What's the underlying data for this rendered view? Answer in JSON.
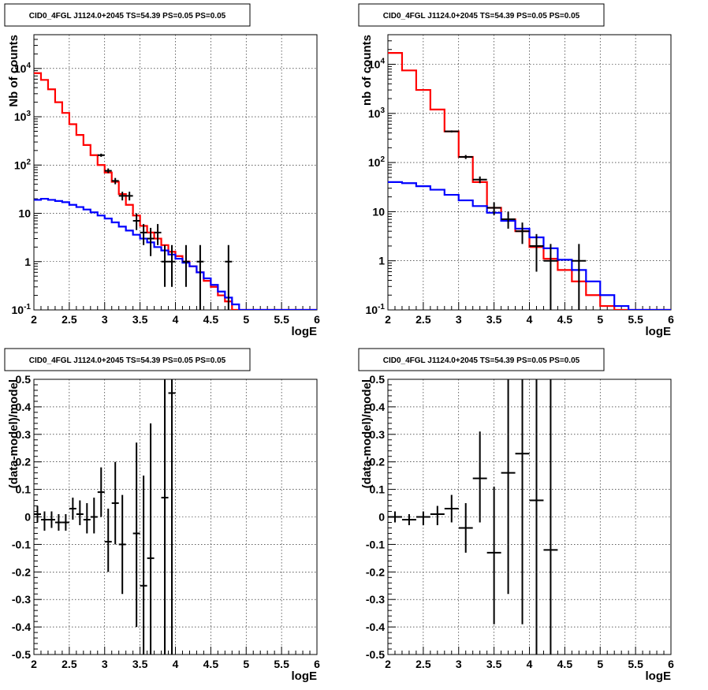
{
  "chart_data": [
    {
      "type": "line",
      "title": "CID0_4FGL J1124.0+2045 TS=54.39 PS=0.05 PS=0.05",
      "xlabel": "logE",
      "ylabel": "Nb of counts",
      "log_y": true,
      "grid": true,
      "xlim": [
        2,
        6
      ],
      "ylim": [
        0.1,
        50000
      ],
      "x_ticks": [
        "2",
        "2.5",
        "3",
        "3.5",
        "4",
        "4.5",
        "5",
        "5.5",
        "6"
      ],
      "y_ticks": [
        {
          "v": 0.1,
          "label": "10^-1"
        },
        {
          "v": 1,
          "label": "1"
        },
        {
          "v": 10,
          "label": "10"
        },
        {
          "v": 100,
          "label": "10^2"
        },
        {
          "v": 1000,
          "label": "10^3"
        },
        {
          "v": 10000,
          "label": "10^4"
        }
      ],
      "bin_edges": [
        2.0,
        2.1,
        2.2,
        2.3,
        2.4,
        2.5,
        2.6,
        2.7,
        2.8,
        2.9,
        3.0,
        3.1,
        3.2,
        3.3,
        3.4,
        3.5,
        3.6,
        3.7,
        3.8,
        3.9,
        4.0,
        4.1,
        4.2,
        4.3,
        4.4,
        4.5,
        4.6,
        4.7,
        4.8,
        4.9,
        5.0,
        5.1,
        5.2,
        5.3,
        5.4,
        5.5,
        5.6,
        5.7,
        5.8,
        5.9,
        6.0
      ],
      "series": [
        {
          "color": "#ff0000",
          "style": "step",
          "values": [
            8000,
            5800,
            3700,
            2000,
            1200,
            700,
            420,
            260,
            160,
            100,
            70,
            45,
            25,
            15,
            9,
            5.5,
            4,
            3,
            2.2,
            1.6,
            1.3,
            1.0,
            0.8,
            0.6,
            0.4,
            0.3,
            0.2,
            0.15,
            0.1,
            0.1,
            0.1,
            0.1,
            0.1,
            0.1,
            0.1,
            0.1,
            0.1,
            0.1,
            0.1,
            0.1
          ]
        },
        {
          "color": "#0000ff",
          "style": "step",
          "values": [
            19,
            20,
            19,
            18,
            17,
            15,
            13.5,
            12,
            10.5,
            9,
            7.8,
            6.5,
            5.3,
            4.4,
            3.6,
            3,
            2.5,
            2,
            1.7,
            1.4,
            1.15,
            0.95,
            0.8,
            0.6,
            0.45,
            0.33,
            0.24,
            0.18,
            0.13,
            0.1,
            0.1,
            0.1,
            0.1,
            0.1,
            0.1,
            0.1,
            0.1,
            0.1,
            0.1,
            0.1
          ]
        },
        {
          "color": "#000000",
          "style": "errorbars",
          "points": [
            {
              "x": 2.95,
              "y": 160,
              "xerr": 0.05,
              "lo": 148,
              "hi": 172
            },
            {
              "x": 3.05,
              "y": 76,
              "xerr": 0.05,
              "lo": 68,
              "hi": 85
            },
            {
              "x": 3.15,
              "y": 47,
              "xerr": 0.05,
              "lo": 40,
              "hi": 54
            },
            {
              "x": 3.25,
              "y": 23,
              "xerr": 0.05,
              "lo": 18.5,
              "hi": 28
            },
            {
              "x": 3.35,
              "y": 23,
              "xerr": 0.05,
              "lo": 18.5,
              "hi": 28
            },
            {
              "x": 3.45,
              "y": 7,
              "xerr": 0.05,
              "lo": 4.5,
              "hi": 10
            },
            {
              "x": 3.55,
              "y": 4,
              "xerr": 0.05,
              "lo": 2.2,
              "hi": 6
            },
            {
              "x": 3.65,
              "y": 3,
              "xerr": 0.05,
              "lo": 1.3,
              "hi": 5
            },
            {
              "x": 3.75,
              "y": 4,
              "xerr": 0.05,
              "lo": 2.2,
              "hi": 6
            },
            {
              "x": 3.85,
              "y": 1,
              "xerr": 0.05,
              "lo": 0.3,
              "hi": 2.2
            },
            {
              "x": 3.95,
              "y": 1,
              "xerr": 0.05,
              "lo": 0.3,
              "hi": 2.2
            },
            {
              "x": 4.15,
              "y": 1,
              "xerr": 0.05,
              "lo": 0.3,
              "hi": 2.2
            },
            {
              "x": 4.35,
              "y": 1,
              "xerr": 0.05,
              "lo": 0.1,
              "hi": 2.2
            },
            {
              "x": 4.75,
              "y": 1,
              "xerr": 0.05,
              "lo": 0.1,
              "hi": 2.2
            }
          ]
        }
      ]
    },
    {
      "type": "line",
      "title": "CID0_4FGL J1124.0+2045 TS=54.39 PS=0.05 PS=0.05",
      "xlabel": "logE",
      "ylabel": "nb of counts",
      "log_y": true,
      "grid": true,
      "xlim": [
        2,
        6
      ],
      "ylim": [
        0.1,
        40000
      ],
      "x_ticks": [
        "2",
        "2.5",
        "3",
        "3.5",
        "4",
        "4.5",
        "5",
        "5.5",
        "6"
      ],
      "y_ticks": [
        {
          "v": 0.1,
          "label": "10^-1"
        },
        {
          "v": 1,
          "label": "1"
        },
        {
          "v": 10,
          "label": "10"
        },
        {
          "v": 100,
          "label": "10^2"
        },
        {
          "v": 1000,
          "label": "10^3"
        },
        {
          "v": 10000,
          "label": "10^4"
        }
      ],
      "bin_edges": [
        2.0,
        2.2,
        2.4,
        2.6,
        2.8,
        3.0,
        3.2,
        3.4,
        3.6,
        3.8,
        4.0,
        4.2,
        4.4,
        4.6,
        4.8,
        5.0,
        5.2,
        5.4,
        5.6,
        5.8,
        6.0
      ],
      "series": [
        {
          "color": "#ff0000",
          "style": "step",
          "values": [
            17000,
            7500,
            3000,
            1200,
            430,
            130,
            40,
            12,
            7,
            4,
            1.9,
            1.1,
            0.65,
            0.38,
            0.2,
            0.12,
            0.1,
            0.1,
            0.1,
            0.1
          ]
        },
        {
          "color": "#0000ff",
          "style": "step",
          "values": [
            40,
            38,
            33,
            28,
            22,
            17,
            13,
            9.5,
            6.5,
            4.5,
            3,
            1.8,
            1.05,
            0.65,
            0.38,
            0.2,
            0.12,
            0.1,
            0.1,
            0.1
          ]
        },
        {
          "color": "#000000",
          "style": "errorbars",
          "points": [
            {
              "x": 2.9,
              "y": 430,
              "xerr": 0.1,
              "lo": 410,
              "hi": 450
            },
            {
              "x": 3.1,
              "y": 130,
              "xerr": 0.1,
              "lo": 118,
              "hi": 142
            },
            {
              "x": 3.3,
              "y": 45,
              "xerr": 0.1,
              "lo": 38,
              "hi": 52
            },
            {
              "x": 3.5,
              "y": 12,
              "xerr": 0.1,
              "lo": 8.5,
              "hi": 15.5
            },
            {
              "x": 3.7,
              "y": 7,
              "xerr": 0.1,
              "lo": 4.5,
              "hi": 10
            },
            {
              "x": 3.9,
              "y": 4,
              "xerr": 0.1,
              "lo": 2.2,
              "hi": 6
            },
            {
              "x": 4.1,
              "y": 2,
              "xerr": 0.1,
              "lo": 0.6,
              "hi": 3.5
            },
            {
              "x": 4.3,
              "y": 1,
              "xerr": 0.1,
              "lo": 0.1,
              "hi": 2.2
            },
            {
              "x": 4.7,
              "y": 1,
              "xerr": 0.1,
              "lo": 0.1,
              "hi": 2.2
            }
          ]
        }
      ]
    },
    {
      "type": "scatter",
      "title": "CID0_4FGL J1124.0+2045 TS=54.39 PS=0.05 PS=0.05",
      "xlabel": "logE",
      "ylabel": "(data-model)/model",
      "log_y": false,
      "grid": true,
      "xlim": [
        2,
        6
      ],
      "ylim": [
        -0.5,
        0.5
      ],
      "x_ticks": [
        "2",
        "2.5",
        "3",
        "3.5",
        "4",
        "4.5",
        "5",
        "5.5",
        "6"
      ],
      "y_ticks": [
        {
          "v": -0.5,
          "label": "-0.5"
        },
        {
          "v": -0.4,
          "label": "-0.4"
        },
        {
          "v": -0.3,
          "label": "-0.3"
        },
        {
          "v": -0.2,
          "label": "-0.2"
        },
        {
          "v": -0.1,
          "label": "-0.1"
        },
        {
          "v": 0,
          "label": "0"
        },
        {
          "v": 0.1,
          "label": "0.1"
        },
        {
          "v": 0.2,
          "label": "0.2"
        },
        {
          "v": 0.3,
          "label": "0.3"
        },
        {
          "v": 0.4,
          "label": "0.4"
        },
        {
          "v": 0.5,
          "label": "0.5"
        }
      ],
      "series": [
        {
          "color": "#000000",
          "style": "errorbars",
          "points": [
            {
              "x": 2.05,
              "y": 0.01,
              "xerr": 0.05,
              "lo": -0.02,
              "hi": 0.04
            },
            {
              "x": 2.15,
              "y": -0.01,
              "xerr": 0.05,
              "lo": -0.05,
              "hi": 0.02
            },
            {
              "x": 2.25,
              "y": -0.01,
              "xerr": 0.05,
              "lo": -0.04,
              "hi": 0.02
            },
            {
              "x": 2.35,
              "y": -0.02,
              "xerr": 0.05,
              "lo": -0.05,
              "hi": 0.01
            },
            {
              "x": 2.45,
              "y": -0.02,
              "xerr": 0.05,
              "lo": -0.05,
              "hi": 0.01
            },
            {
              "x": 2.55,
              "y": 0.03,
              "xerr": 0.05,
              "lo": -0.01,
              "hi": 0.07
            },
            {
              "x": 2.65,
              "y": 0.01,
              "xerr": 0.05,
              "lo": -0.03,
              "hi": 0.06
            },
            {
              "x": 2.75,
              "y": -0.01,
              "xerr": 0.05,
              "lo": -0.06,
              "hi": 0.05
            },
            {
              "x": 2.85,
              "y": 0.0,
              "xerr": 0.05,
              "lo": -0.06,
              "hi": 0.07
            },
            {
              "x": 2.95,
              "y": 0.09,
              "xerr": 0.05,
              "lo": 0.0,
              "hi": 0.18
            },
            {
              "x": 3.05,
              "y": -0.09,
              "xerr": 0.05,
              "lo": -0.2,
              "hi": 0.03
            },
            {
              "x": 3.15,
              "y": 0.05,
              "xerr": 0.05,
              "lo": -0.1,
              "hi": 0.2
            },
            {
              "x": 3.25,
              "y": -0.1,
              "xerr": 0.05,
              "lo": -0.28,
              "hi": 0.08
            },
            {
              "x": 3.45,
              "y": -0.06,
              "xerr": 0.05,
              "lo": -0.4,
              "hi": 0.27
            },
            {
              "x": 3.55,
              "y": -0.25,
              "xerr": 0.05,
              "lo": -0.5,
              "hi": 0.15
            },
            {
              "x": 3.65,
              "y": -0.15,
              "xerr": 0.05,
              "lo": -0.5,
              "hi": 0.34
            },
            {
              "x": 3.85,
              "y": 0.07,
              "xerr": 0.05,
              "lo": -0.5,
              "hi": 0.5
            },
            {
              "x": 3.95,
              "y": 0.45,
              "xerr": 0.05,
              "lo": -0.5,
              "hi": 0.5
            }
          ]
        }
      ]
    },
    {
      "type": "scatter",
      "title": "CID0_4FGL J1124.0+2045 TS=54.39 PS=0.05 PS=0.05",
      "xlabel": "logE",
      "ylabel": "(data-model)/model",
      "log_y": false,
      "grid": true,
      "xlim": [
        2,
        6
      ],
      "ylim": [
        -0.5,
        0.5
      ],
      "x_ticks": [
        "2",
        "2.5",
        "3",
        "3.5",
        "4",
        "4.5",
        "5",
        "5.5",
        "6"
      ],
      "y_ticks": [
        {
          "v": -0.5,
          "label": "-0.5"
        },
        {
          "v": -0.4,
          "label": "-0.4"
        },
        {
          "v": -0.3,
          "label": "-0.3"
        },
        {
          "v": -0.2,
          "label": "-0.2"
        },
        {
          "v": -0.1,
          "label": "-0.1"
        },
        {
          "v": 0,
          "label": "0"
        },
        {
          "v": 0.1,
          "label": "0.1"
        },
        {
          "v": 0.2,
          "label": "0.2"
        },
        {
          "v": 0.3,
          "label": "0.3"
        },
        {
          "v": 0.4,
          "label": "0.4"
        },
        {
          "v": 0.5,
          "label": "0.5"
        }
      ],
      "series": [
        {
          "color": "#000000",
          "style": "errorbars",
          "points": [
            {
              "x": 2.1,
              "y": 0.0,
              "xerr": 0.1,
              "lo": -0.02,
              "hi": 0.02
            },
            {
              "x": 2.3,
              "y": -0.01,
              "xerr": 0.1,
              "lo": -0.03,
              "hi": 0.01
            },
            {
              "x": 2.5,
              "y": 0.0,
              "xerr": 0.1,
              "lo": -0.03,
              "hi": 0.02
            },
            {
              "x": 2.7,
              "y": 0.01,
              "xerr": 0.1,
              "lo": -0.03,
              "hi": 0.04
            },
            {
              "x": 2.9,
              "y": 0.03,
              "xerr": 0.1,
              "lo": -0.02,
              "hi": 0.08
            },
            {
              "x": 3.1,
              "y": -0.04,
              "xerr": 0.1,
              "lo": -0.13,
              "hi": 0.05
            },
            {
              "x": 3.3,
              "y": 0.14,
              "xerr": 0.1,
              "lo": -0.02,
              "hi": 0.31
            },
            {
              "x": 3.5,
              "y": -0.13,
              "xerr": 0.1,
              "lo": -0.39,
              "hi": 0.11
            },
            {
              "x": 3.7,
              "y": 0.16,
              "xerr": 0.1,
              "lo": -0.28,
              "hi": 0.5
            },
            {
              "x": 3.9,
              "y": 0.23,
              "xerr": 0.1,
              "lo": -0.39,
              "hi": 0.5
            },
            {
              "x": 4.1,
              "y": 0.06,
              "xerr": 0.1,
              "lo": -0.5,
              "hi": 0.5
            },
            {
              "x": 4.3,
              "y": -0.12,
              "xerr": 0.1,
              "lo": -0.5,
              "hi": 0.5
            }
          ]
        }
      ]
    }
  ]
}
